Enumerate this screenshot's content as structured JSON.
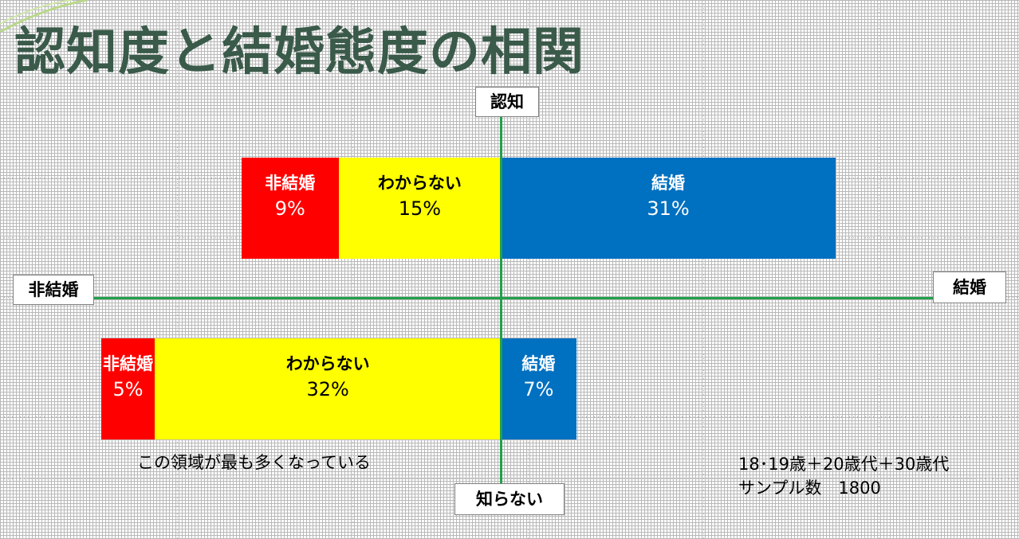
{
  "title": "認知度と結婚態度の相関",
  "axes": {
    "top": "認知",
    "bottom": "知らない",
    "left": "非結婚",
    "right": "結婚"
  },
  "colors": {
    "non_marriage": "#ff0000",
    "unknown": "#ffff00",
    "marriage": "#0070c0",
    "axis": "#22a04a",
    "title": "#3a5a4a"
  },
  "chart_data": {
    "type": "bar",
    "orientation": "horizontal-stacked-diverging",
    "categories": [
      "認知",
      "知らない"
    ],
    "segments": [
      {
        "group": "認知",
        "label": "非結婚",
        "value": 9,
        "value_label": "9%",
        "color": "#ff0000"
      },
      {
        "group": "認知",
        "label": "わからない",
        "value": 15,
        "value_label": "15%",
        "color": "#ffff00"
      },
      {
        "group": "認知",
        "label": "結婚",
        "value": 31,
        "value_label": "31%",
        "color": "#0070c0"
      },
      {
        "group": "知らない",
        "label": "非結婚",
        "value": 5,
        "value_label": "5%",
        "color": "#ff0000"
      },
      {
        "group": "知らない",
        "label": "わからない",
        "value": 32,
        "value_label": "32%",
        "color": "#ffff00"
      },
      {
        "group": "知らない",
        "label": "結婚",
        "value": 7,
        "value_label": "7%",
        "color": "#0070c0"
      }
    ],
    "xlabel_left": "非結婚",
    "xlabel_right": "結婚",
    "ylabel_top": "認知",
    "ylabel_bottom": "知らない"
  },
  "annotation": "この領域が最も多くなっている",
  "notes": {
    "sample_group": "18･19歳＋20歳代＋30歳代",
    "sample_size": "サンプル数　1800"
  }
}
